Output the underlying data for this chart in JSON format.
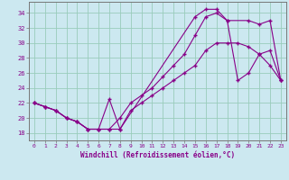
{
  "xlabel": "Windchill (Refroidissement éolien,°C)",
  "bg_color": "#cce8f0",
  "line_color": "#880088",
  "grid_color": "#99ccbb",
  "xlim": [
    -0.5,
    23.5
  ],
  "ylim": [
    17,
    35.5
  ],
  "yticks": [
    18,
    20,
    22,
    24,
    26,
    28,
    30,
    32,
    34
  ],
  "xticks": [
    0,
    1,
    2,
    3,
    4,
    5,
    6,
    7,
    8,
    9,
    10,
    11,
    12,
    13,
    14,
    15,
    16,
    17,
    18,
    19,
    20,
    21,
    22,
    23
  ],
  "line1_x": [
    0,
    1,
    2,
    3,
    4,
    5,
    6,
    7,
    8,
    9,
    10,
    11,
    12,
    13,
    14,
    15,
    16,
    17,
    18,
    19,
    20,
    21,
    22,
    23
  ],
  "line1_y": [
    22,
    21.5,
    21,
    20,
    19.5,
    18.5,
    18.5,
    18.5,
    18.5,
    21,
    22,
    23,
    24,
    25,
    26,
    27,
    29,
    30,
    30,
    30,
    29.5,
    28.5,
    27,
    25
  ],
  "line2_x": [
    0,
    1,
    2,
    3,
    4,
    5,
    6,
    7,
    8,
    9,
    10,
    11,
    12,
    13,
    14,
    15,
    16,
    17,
    18,
    20,
    21,
    22,
    23
  ],
  "line2_y": [
    22,
    21.5,
    21,
    20,
    19.5,
    18.5,
    18.5,
    18.5,
    20,
    22,
    23,
    24,
    25.5,
    27,
    28.5,
    31,
    33.5,
    34,
    33,
    33,
    32.5,
    33,
    25
  ],
  "line3_x": [
    0,
    1,
    2,
    3,
    4,
    5,
    6,
    7,
    8,
    15,
    16,
    17,
    18,
    19,
    20,
    21,
    22,
    23
  ],
  "line3_y": [
    22,
    21.5,
    21,
    20,
    19.5,
    18.5,
    18.5,
    22.5,
    18.5,
    33.5,
    34.5,
    34.5,
    33,
    25,
    26,
    28.5,
    29,
    25
  ]
}
